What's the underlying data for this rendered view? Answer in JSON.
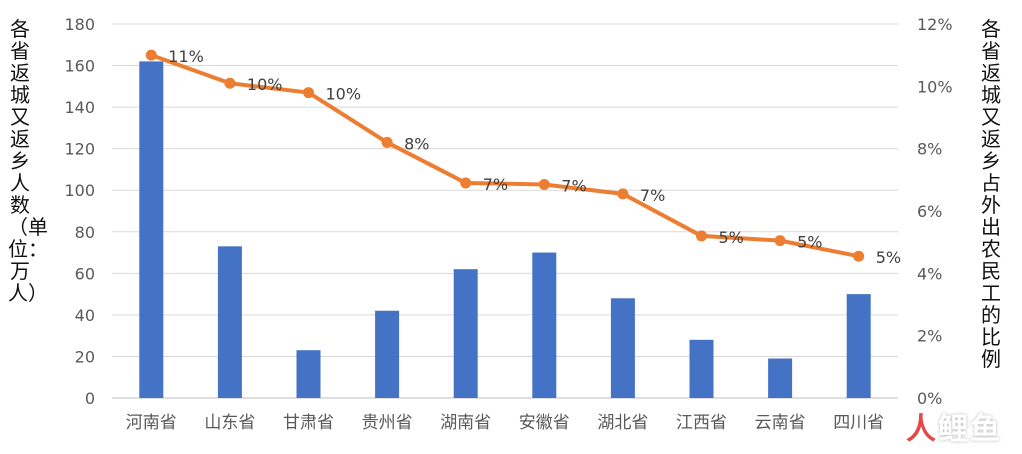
{
  "chart_data": {
    "type": "bar+line",
    "categories": [
      "河南省",
      "山东省",
      "甘肃省",
      "贵州省",
      "湖南省",
      "安徽省",
      "湖北省",
      "江西省",
      "云南省",
      "四川省"
    ],
    "series": [
      {
        "values": [
          162,
          73,
          23,
          42,
          62,
          70,
          48,
          28,
          19,
          50
        ],
        "axis": "left",
        "kind": "bar",
        "color": "#4472c4"
      },
      {
        "values": [
          0.11,
          0.101,
          0.098,
          0.082,
          0.069,
          0.0685,
          0.0655,
          0.052,
          0.0505,
          0.0455
        ],
        "axis": "right",
        "kind": "line",
        "color": "#ed7d31",
        "data_labels": [
          "11%",
          "10%",
          "10%",
          "8%",
          "7%",
          "7%",
          "7%",
          "5%",
          "5%",
          "5%"
        ]
      }
    ],
    "ylabel": "各省返城又返乡人数（单位：万人）",
    "y2label": "各省返城又返乡占外出农民工的比例",
    "ylim": [
      0,
      180
    ],
    "yticks": [
      "0",
      "20",
      "40",
      "60",
      "80",
      "100",
      "120",
      "140",
      "160",
      "180"
    ],
    "y2lim": [
      0,
      0.12
    ],
    "y2ticks": [
      "0%",
      "2%",
      "4%",
      "6%",
      "8%",
      "10%",
      "12%"
    ],
    "grid": true,
    "legend": "none"
  },
  "watermark": {
    "mark": "人",
    "text": "鲤鱼"
  }
}
